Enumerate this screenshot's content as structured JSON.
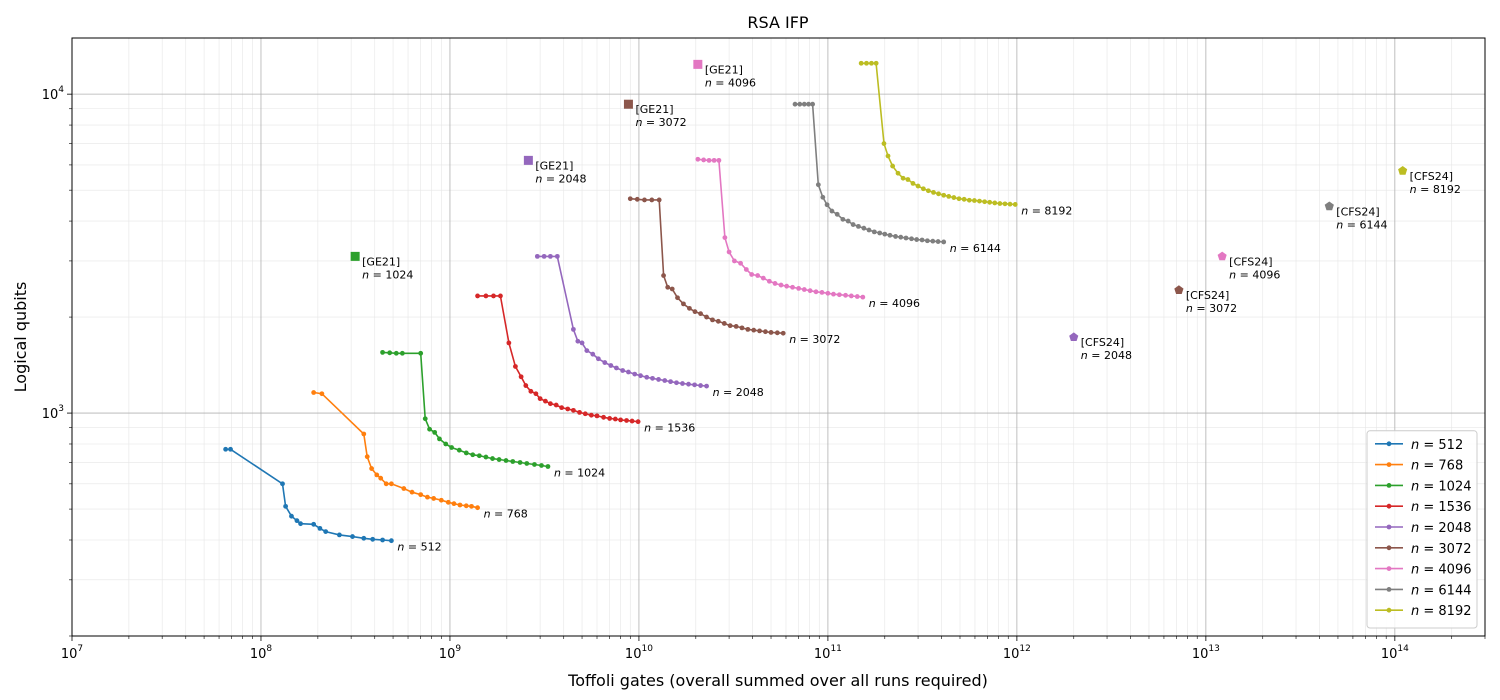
{
  "chart_data": {
    "type": "line",
    "title": "RSA IFP",
    "xlabel": "Toffoli gates (overall summed over all runs required)",
    "ylabel": "Logical qubits",
    "xscale": "log",
    "yscale": "log",
    "xlim": [
      10000000.0,
      300000000000000.0
    ],
    "ylim": [
      200,
      15000
    ],
    "grid": true,
    "legend_position": "lower-right",
    "x_ticks": [
      {
        "value": 10000000.0,
        "base": "10",
        "exp": "7"
      },
      {
        "value": 100000000.0,
        "base": "10",
        "exp": "8"
      },
      {
        "value": 1000000000.0,
        "base": "10",
        "exp": "9"
      },
      {
        "value": 10000000000.0,
        "base": "10",
        "exp": "10"
      },
      {
        "value": 100000000000.0,
        "base": "10",
        "exp": "11"
      },
      {
        "value": 1000000000000.0,
        "base": "10",
        "exp": "12"
      },
      {
        "value": 10000000000000.0,
        "base": "10",
        "exp": "13"
      },
      {
        "value": 100000000000000.0,
        "base": "10",
        "exp": "14"
      }
    ],
    "y_ticks": [
      {
        "value": 1000,
        "base": "10",
        "exp": "3"
      },
      {
        "value": 10000,
        "base": "10",
        "exp": "4"
      }
    ],
    "series": [
      {
        "name": "n = 512",
        "color": "#1f77b4",
        "end_label": "n = 512",
        "x": [
          65000000.0,
          69000000.0,
          130000000.0,
          135000000.0,
          145000000.0,
          155000000.0,
          162000000.0,
          190000000.0,
          205000000.0,
          220000000.0,
          260000000.0,
          305000000.0,
          350000000.0,
          390000000.0,
          440000000.0,
          490000000.0
        ],
        "y": [
          770,
          770,
          600,
          510,
          475,
          460,
          450,
          448,
          435,
          425,
          415,
          410,
          405,
          402,
          400,
          398
        ]
      },
      {
        "name": "n = 768",
        "color": "#ff7f0e",
        "end_label": "n = 768",
        "x": [
          190000000.0,
          210000000.0,
          350000000.0,
          365000000.0,
          385000000.0,
          410000000.0,
          430000000.0,
          460000000.0,
          490000000.0,
          570000000.0,
          630000000.0,
          700000000.0,
          760000000.0,
          820000000.0,
          900000000.0,
          980000000.0,
          1050000000.0,
          1130000000.0,
          1220000000.0,
          1300000000.0,
          1400000000.0
        ],
        "y": [
          1160,
          1150,
          860,
          730,
          670,
          640,
          625,
          600,
          600,
          580,
          565,
          555,
          545,
          540,
          533,
          525,
          520,
          515,
          512,
          510,
          505
        ]
      },
      {
        "name": "n = 1024",
        "color": "#2ca02c",
        "end_label": "n = 1024",
        "x": [
          440000000.0,
          480000000.0,
          520000000.0,
          560000000.0,
          700000000.0,
          740000000.0,
          780000000.0,
          830000000.0,
          880000000.0,
          950000000.0,
          1020000000.0,
          1120000000.0,
          1220000000.0,
          1320000000.0,
          1430000000.0,
          1550000000.0,
          1680000000.0,
          1820000000.0,
          1980000000.0,
          2150000000.0,
          2350000000.0,
          2550000000.0,
          2800000000.0,
          3050000000.0,
          3300000000.0
        ],
        "y": [
          1550,
          1545,
          1540,
          1540,
          1540,
          960,
          890,
          870,
          830,
          800,
          780,
          765,
          750,
          740,
          735,
          728,
          720,
          715,
          710,
          705,
          700,
          695,
          690,
          685,
          680
        ]
      },
      {
        "name": "n = 1536",
        "color": "#d62728",
        "end_label": "n = 1536",
        "x": [
          1400000000.0,
          1550000000.0,
          1700000000.0,
          1850000000.0,
          2050000000.0,
          2220000000.0,
          2380000000.0,
          2520000000.0,
          2680000000.0,
          2850000000.0,
          3000000000.0,
          3200000000.0,
          3400000000.0,
          3650000000.0,
          3900000000.0,
          4200000000.0,
          4500000000.0,
          4850000000.0,
          5200000000.0,
          5600000000.0,
          6000000000.0,
          6500000000.0,
          7000000000.0,
          7500000000.0,
          8000000000.0,
          8600000000.0,
          9200000000.0,
          9900000000.0
        ],
        "y": [
          2330,
          2330,
          2330,
          2330,
          1660,
          1400,
          1300,
          1220,
          1170,
          1150,
          1110,
          1090,
          1070,
          1060,
          1040,
          1030,
          1020,
          1005,
          995,
          985,
          980,
          970,
          962,
          958,
          952,
          948,
          944,
          940
        ]
      },
      {
        "name": "n = 2048",
        "color": "#9467bd",
        "end_label": "n = 2048",
        "x": [
          2900000000.0,
          3150000000.0,
          3400000000.0,
          3700000000.0,
          4500000000.0,
          4750000000.0,
          5000000000.0,
          5300000000.0,
          5700000000.0,
          6100000000.0,
          6600000000.0,
          7100000000.0,
          7600000000.0,
          8200000000.0,
          8800000000.0,
          9500000000.0,
          10200000000.0,
          11000000000.0,
          11800000000.0,
          12700000000.0,
          13700000000.0,
          14700000000.0,
          15800000000.0,
          17000000000.0,
          18300000000.0,
          19700000000.0,
          21200000000.0,
          22800000000.0
        ],
        "y": [
          3100,
          3100,
          3100,
          3100,
          1830,
          1680,
          1660,
          1570,
          1530,
          1480,
          1440,
          1410,
          1385,
          1360,
          1345,
          1325,
          1310,
          1295,
          1285,
          1275,
          1265,
          1255,
          1245,
          1238,
          1232,
          1226,
          1220,
          1215
        ]
      },
      {
        "name": "n = 3072",
        "color": "#8c564b",
        "end_label": "n = 3072",
        "x": [
          9000000000.0,
          9800000000.0,
          10700000000.0,
          11700000000.0,
          12800000000.0,
          13500000000.0,
          14200000000.0,
          15000000000.0,
          16000000000.0,
          17200000000.0,
          18500000000.0,
          19800000000.0,
          21200000000.0,
          22800000000.0,
          24500000000.0,
          26300000000.0,
          28300000000.0,
          30400000000.0,
          32700000000.0,
          35100000000.0,
          37700000000.0,
          40500000000.0,
          43500000000.0,
          46700000000.0,
          50000000000.0,
          54000000000.0,
          58000000000.0
        ],
        "y": [
          4700,
          4680,
          4660,
          4660,
          4660,
          2700,
          2480,
          2450,
          2300,
          2200,
          2130,
          2080,
          2050,
          2000,
          1960,
          1940,
          1910,
          1880,
          1870,
          1850,
          1830,
          1820,
          1810,
          1800,
          1790,
          1785,
          1780
        ]
      },
      {
        "name": "n = 4096",
        "color": "#e377c2",
        "end_label": "n = 4096",
        "x": [
          20500000000.0,
          22000000000.0,
          23500000000.0,
          25000000000.0,
          26500000000.0,
          28500000000.0,
          30000000000.0,
          32000000000.0,
          34500000000.0,
          37000000000.0,
          39500000000.0,
          42500000000.0,
          45500000000.0,
          49000000000.0,
          52500000000.0,
          56500000000.0,
          60500000000.0,
          65000000000.0,
          70000000000.0,
          75000000000.0,
          80500000000.0,
          86500000000.0,
          93000000000.0,
          100000000000.0,
          107000000000.0,
          115000000000.0,
          124000000000.0,
          133000000000.0,
          143000000000.0,
          153000000000.0
        ],
        "y": [
          6250,
          6220,
          6200,
          6200,
          6200,
          3550,
          3200,
          3000,
          2950,
          2820,
          2720,
          2700,
          2650,
          2590,
          2550,
          2520,
          2500,
          2480,
          2460,
          2440,
          2420,
          2400,
          2390,
          2375,
          2360,
          2350,
          2340,
          2330,
          2320,
          2310
        ]
      },
      {
        "name": "n = 6144",
        "color": "#7f7f7f",
        "end_label": "n = 6144",
        "x": [
          67000000000.0,
          71000000000.0,
          75000000000.0,
          79000000000.0,
          83000000000.0,
          89000000000.0,
          94000000000.0,
          99000000000.0,
          105000000000.0,
          112000000000.0,
          120000000000.0,
          128000000000.0,
          136000000000.0,
          145000000000.0,
          155000000000.0,
          165000000000.0,
          176000000000.0,
          188000000000.0,
          200000000000.0,
          213000000000.0,
          228000000000.0,
          243000000000.0,
          259000000000.0,
          277000000000.0,
          295000000000.0,
          315000000000.0,
          336000000000.0,
          359000000000.0,
          383000000000.0,
          410000000000.0
        ],
        "y": [
          9300,
          9300,
          9300,
          9300,
          9300,
          5200,
          4750,
          4500,
          4300,
          4200,
          4050,
          4000,
          3900,
          3850,
          3800,
          3750,
          3700,
          3670,
          3640,
          3610,
          3580,
          3560,
          3540,
          3520,
          3500,
          3490,
          3470,
          3460,
          3450,
          3440
        ]
      },
      {
        "name": "n = 8192",
        "color": "#bcbd22",
        "end_label": "n = 8192",
        "x": [
          150000000000.0,
          160000000000.0,
          170000000000.0,
          180000000000.0,
          198000000000.0,
          208000000000.0,
          220000000000.0,
          235000000000.0,
          250000000000.0,
          265000000000.0,
          282000000000.0,
          300000000000.0,
          320000000000.0,
          340000000000.0,
          362000000000.0,
          385000000000.0,
          410000000000.0,
          436000000000.0,
          464000000000.0,
          494000000000.0,
          526000000000.0,
          560000000000.0,
          596000000000.0,
          634000000000.0,
          675000000000.0,
          718000000000.0,
          764000000000.0,
          813000000000.0,
          865000000000.0,
          920000000000.0,
          980000000000.0
        ],
        "y": [
          12500,
          12500,
          12500,
          12500,
          7000,
          6400,
          5950,
          5650,
          5450,
          5400,
          5250,
          5150,
          5050,
          4980,
          4920,
          4870,
          4820,
          4780,
          4740,
          4700,
          4680,
          4650,
          4640,
          4620,
          4600,
          4580,
          4560,
          4540,
          4530,
          4520,
          4510
        ]
      }
    ],
    "reference_points": [
      {
        "label": "[GE21]",
        "sublabel": "n = 1024",
        "x": 315000000.0,
        "y": 3100,
        "color": "#2ca02c",
        "marker": "square"
      },
      {
        "label": "[GE21]",
        "sublabel": "n = 2048",
        "x": 2600000000.0,
        "y": 6200,
        "color": "#9467bd",
        "marker": "square"
      },
      {
        "label": "[GE21]",
        "sublabel": "n = 3072",
        "x": 8800000000.0,
        "y": 9300,
        "color": "#8c564b",
        "marker": "square"
      },
      {
        "label": "[GE21]",
        "sublabel": "n = 4096",
        "x": 20500000000.0,
        "y": 12400,
        "color": "#e377c2",
        "marker": "square"
      },
      {
        "label": "[CFS24]",
        "sublabel": "n = 2048",
        "x": 2000000000000.0,
        "y": 1730,
        "color": "#9467bd",
        "marker": "pentagon"
      },
      {
        "label": "[CFS24]",
        "sublabel": "n = 3072",
        "x": 7200000000000.0,
        "y": 2430,
        "color": "#8c564b",
        "marker": "pentagon"
      },
      {
        "label": "[CFS24]",
        "sublabel": "n = 4096",
        "x": 12200000000000.0,
        "y": 3100,
        "color": "#e377c2",
        "marker": "pentagon"
      },
      {
        "label": "[CFS24]",
        "sublabel": "n = 6144",
        "x": 45000000000000.0,
        "y": 4450,
        "color": "#7f7f7f",
        "marker": "pentagon"
      },
      {
        "label": "[CFS24]",
        "sublabel": "n = 8192",
        "x": 110000000000000.0,
        "y": 5750,
        "color": "#bcbd22",
        "marker": "pentagon"
      }
    ]
  }
}
